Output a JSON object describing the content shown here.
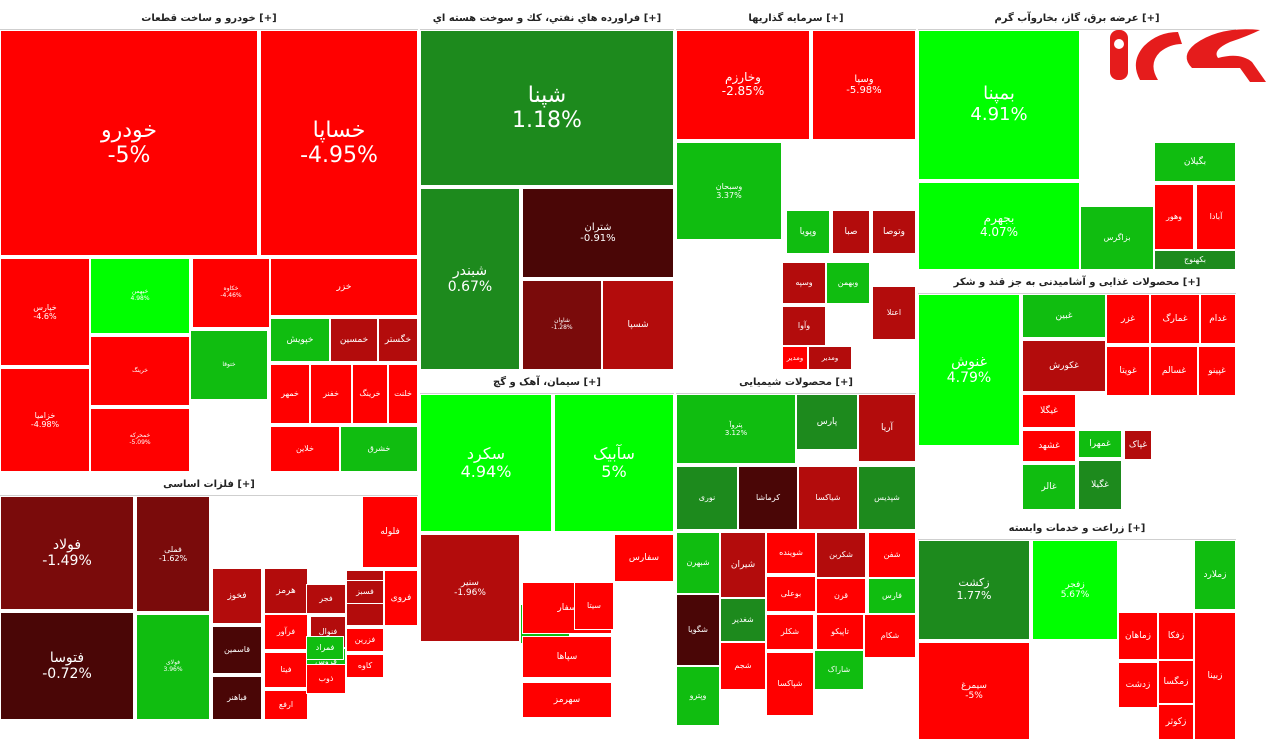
{
  "chart_data": {
    "type": "treemap",
    "color_scale": {
      "strong_up": "#00ff00",
      "up": "#10bd10",
      "up_dark": "#1d8a1d",
      "down": "#ff0000",
      "down_mid": "#b30c0c",
      "down_dark": "#7a0b0b",
      "deep_dark": "#4a0606"
    },
    "sectors": [
      {
        "title": "خودرو و ساخت قطعات [+]",
        "tiles": [
          {
            "name": "خودرو",
            "change": "-5%",
            "value": -5
          },
          {
            "name": "خساپا",
            "change": "-4.95%",
            "value": -4.95
          },
          {
            "name": "خپارس",
            "change": "-4.6%",
            "value": -4.6
          },
          {
            "name": "خزامیا",
            "change": "-4.98%",
            "value": -4.98
          },
          {
            "name": "خبهمن",
            "change": "4.98%",
            "value": 4.98
          },
          {
            "name": "خرینگ",
            "change": "",
            "value": -3
          },
          {
            "name": "خمحرکه",
            "change": "-5.09%",
            "value": -5.09
          },
          {
            "name": "خکاوه",
            "change": "-4.46%",
            "value": -4.46
          },
          {
            "name": "خزر",
            "change": "",
            "value": -3
          },
          {
            "name": "خپویش",
            "change": "",
            "value": 3
          },
          {
            "name": "خمسین",
            "change": "",
            "value": -2
          },
          {
            "name": "خگستر",
            "change": "",
            "value": -2
          },
          {
            "name": "خمهر",
            "change": "",
            "value": -3
          },
          {
            "name": "خفنر",
            "change": "",
            "value": -3
          },
          {
            "name": "خرینگ",
            "change": "",
            "value": -3
          },
          {
            "name": "ختوقا",
            "change": "",
            "value": 3
          },
          {
            "name": "خلنت",
            "change": "",
            "value": -3
          },
          {
            "name": "خلاین",
            "change": "",
            "value": -3
          },
          {
            "name": "خشرق",
            "change": "",
            "value": 3
          }
        ]
      },
      {
        "title": "فراورده هاي نفتي، كك و سوخت هسته اي [+]",
        "tiles": [
          {
            "name": "شپنا",
            "change": "1.18%",
            "value": 1.18
          },
          {
            "name": "شبندر",
            "change": "0.67%",
            "value": 0.67
          },
          {
            "name": "شتران",
            "change": "-0.91%",
            "value": -0.91
          },
          {
            "name": "شاوان",
            "change": "-1.28%",
            "value": -1.28
          },
          {
            "name": "شسپا",
            "change": "",
            "value": -2
          }
        ]
      },
      {
        "title": "سرمایه گذاریها [+]",
        "tiles": [
          {
            "name": "وخارزم",
            "change": "-2.85%",
            "value": -2.85
          },
          {
            "name": "وسپا",
            "change": "-5.98%",
            "value": -5.98
          },
          {
            "name": "وسبحان",
            "change": "3.37%",
            "value": 3.37
          },
          {
            "name": "ومدیر",
            "change": "",
            "value": -3
          },
          {
            "name": "وتوصا",
            "change": "",
            "value": -2
          },
          {
            "name": "صبا",
            "change": "",
            "value": -2
          },
          {
            "name": "وپویا",
            "change": "",
            "value": 3
          },
          {
            "name": "وسپه",
            "change": "",
            "value": -2
          },
          {
            "name": "وآوا",
            "change": "",
            "value": -2
          },
          {
            "name": "اعتلا",
            "change": "",
            "value": -2
          },
          {
            "name": "وبهمن",
            "change": "",
            "value": 3
          },
          {
            "name": "ومدیر",
            "change": "",
            "value": -2
          }
        ]
      },
      {
        "title": "عرضه برق، گاز، بخاروآب گرم [+]",
        "tiles": [
          {
            "name": "بمپنا",
            "change": "4.91%",
            "value": 4.91
          },
          {
            "name": "بجهرم",
            "change": "4.07%",
            "value": 4.07
          },
          {
            "name": "بگیلان",
            "change": "",
            "value": 3
          },
          {
            "name": "وهور",
            "change": "",
            "value": -3
          },
          {
            "name": "آبادا",
            "change": "",
            "value": -3
          },
          {
            "name": "بزاگرس",
            "change": "",
            "value": 3
          },
          {
            "name": "بکهنوج",
            "change": "",
            "value": 2
          }
        ]
      },
      {
        "title": "فلزات اساسی [+]",
        "tiles": [
          {
            "name": "فولاد",
            "change": "-1.49%",
            "value": -1.49
          },
          {
            "name": "فتوسا",
            "change": "-0.72%",
            "value": -0.72
          },
          {
            "name": "فملی",
            "change": "-1.62%",
            "value": -1.62
          },
          {
            "name": "فولای",
            "change": "3.96%",
            "value": 3.96
          },
          {
            "name": "فلوله",
            "change": "",
            "value": -3
          },
          {
            "name": "فخوز",
            "change": "",
            "value": -2
          },
          {
            "name": "هرمز",
            "change": "",
            "value": -2
          },
          {
            "name": "فروی",
            "change": "",
            "value": -3
          },
          {
            "name": "فنوال",
            "change": "",
            "value": -2
          },
          {
            "name": "فسپا",
            "change": "",
            "value": -2
          },
          {
            "name": "فجر",
            "change": "",
            "value": -2
          },
          {
            "name": "قاسمین",
            "change": "",
            "value": -1
          },
          {
            "name": "فرآور",
            "change": "",
            "value": -3
          },
          {
            "name": "فیتا",
            "change": "",
            "value": -3
          },
          {
            "name": "ارفع",
            "change": "",
            "value": -3
          },
          {
            "name": "فباهنر",
            "change": "",
            "value": -1
          },
          {
            "name": "فروس",
            "change": "",
            "value": 3
          },
          {
            "name": "فزرین",
            "change": "",
            "value": -3
          },
          {
            "name": "فمراد",
            "change": "",
            "value": 3
          },
          {
            "name": "کاوه",
            "change": "",
            "value": -3
          },
          {
            "name": "فسبز",
            "change": "",
            "value": -2
          },
          {
            "name": "ذوب",
            "change": "",
            "value": -3
          }
        ]
      },
      {
        "title": "سیمان، آهک و گچ [+]",
        "tiles": [
          {
            "name": "سکرد",
            "change": "4.94%",
            "value": 4.94
          },
          {
            "name": "سآبیک",
            "change": "5%",
            "value": 5
          },
          {
            "name": "سنیر",
            "change": "-1.96%",
            "value": -1.96
          },
          {
            "name": "سفارس",
            "change": "",
            "value": -3
          },
          {
            "name": "سغرب",
            "change": "",
            "value": 3
          },
          {
            "name": "سفار",
            "change": "",
            "value": -3
          },
          {
            "name": "سیتا",
            "change": "",
            "value": -3
          },
          {
            "name": "سپاها",
            "change": "",
            "value": -3
          },
          {
            "name": "سهرمز",
            "change": "",
            "value": -3
          }
        ]
      },
      {
        "title": "محصولات شیمیایی [+]",
        "tiles": [
          {
            "name": "پتروآ",
            "change": "3.12%",
            "value": 3.12
          },
          {
            "name": "پارس",
            "change": "",
            "value": 2
          },
          {
            "name": "آریا",
            "change": "",
            "value": -2
          },
          {
            "name": "نوری",
            "change": "",
            "value": 1
          },
          {
            "name": "کرماشا",
            "change": "",
            "value": -1
          },
          {
            "name": "شیاکسا",
            "change": "",
            "value": -2
          },
          {
            "name": "شپدیس",
            "change": "",
            "value": 1
          },
          {
            "name": "شبهرن",
            "change": "",
            "value": 3
          },
          {
            "name": "شیران",
            "change": "",
            "value": -2
          },
          {
            "name": "شوینده",
            "change": "",
            "value": -3
          },
          {
            "name": "شکربن",
            "change": "",
            "value": -2
          },
          {
            "name": "شفن",
            "change": "",
            "value": -3
          },
          {
            "name": "بوعلی",
            "change": "",
            "value": -3
          },
          {
            "name": "قرن",
            "change": "",
            "value": -3
          },
          {
            "name": "فارس",
            "change": "",
            "value": 3
          },
          {
            "name": "شگویا",
            "change": "",
            "value": -1
          },
          {
            "name": "شغدیر",
            "change": "",
            "value": 1
          },
          {
            "name": "شکلر",
            "change": "",
            "value": -3
          },
          {
            "name": "تاپیکو",
            "change": "",
            "value": -3
          },
          {
            "name": "شکام",
            "change": "",
            "value": -3
          },
          {
            "name": "وپترو",
            "change": "",
            "value": 3
          },
          {
            "name": "شجم",
            "change": "",
            "value": -3
          },
          {
            "name": "شاراک",
            "change": "",
            "value": 3
          },
          {
            "name": "شپاکسا",
            "change": "",
            "value": -3
          }
        ]
      },
      {
        "title": "محصولات غذایی و آشامیدنی به جز قند و شکر [+]",
        "tiles": [
          {
            "name": "غنوش",
            "change": "4.79%",
            "value": 4.79
          },
          {
            "name": "غدام",
            "change": "",
            "value": -3
          },
          {
            "name": "غمارگ",
            "change": "",
            "value": -3
          },
          {
            "name": "غبین",
            "change": "",
            "value": 3
          },
          {
            "name": "غزر",
            "change": "",
            "value": -3
          },
          {
            "name": "غویتا",
            "change": "",
            "value": -3
          },
          {
            "name": "غسالم",
            "change": "",
            "value": -3
          },
          {
            "name": "غپینو",
            "change": "",
            "value": -3
          },
          {
            "name": "غیگلا",
            "change": "",
            "value": -3
          },
          {
            "name": "غشهد",
            "change": "",
            "value": -3
          },
          {
            "name": "غکورش",
            "change": "",
            "value": -2
          },
          {
            "name": "غمهرا",
            "change": "",
            "value": 3
          },
          {
            "name": "غالر",
            "change": "",
            "value": 3
          },
          {
            "name": "غگیلا",
            "change": "",
            "value": 1
          },
          {
            "name": "غپاک",
            "change": "",
            "value": -2
          }
        ]
      },
      {
        "title": "زراعت و خدمات وابسته [+]",
        "tiles": [
          {
            "name": "زکشت",
            "change": "1.77%",
            "value": 1.77
          },
          {
            "name": "زفجر",
            "change": "5.67%",
            "value": 5.67
          },
          {
            "name": "زملارد",
            "change": "",
            "value": 3
          },
          {
            "name": "زماهان",
            "change": "",
            "value": -3
          },
          {
            "name": "زفکا",
            "change": "",
            "value": -3
          },
          {
            "name": "زمگسا",
            "change": "",
            "value": -3
          },
          {
            "name": "زدشت",
            "change": "",
            "value": -3
          },
          {
            "name": "زکوثر",
            "change": "",
            "value": -3
          },
          {
            "name": "زبینا",
            "change": "",
            "value": -3
          },
          {
            "name": "سیمرغ",
            "change": "-5%",
            "value": -5
          }
        ]
      }
    ]
  }
}
